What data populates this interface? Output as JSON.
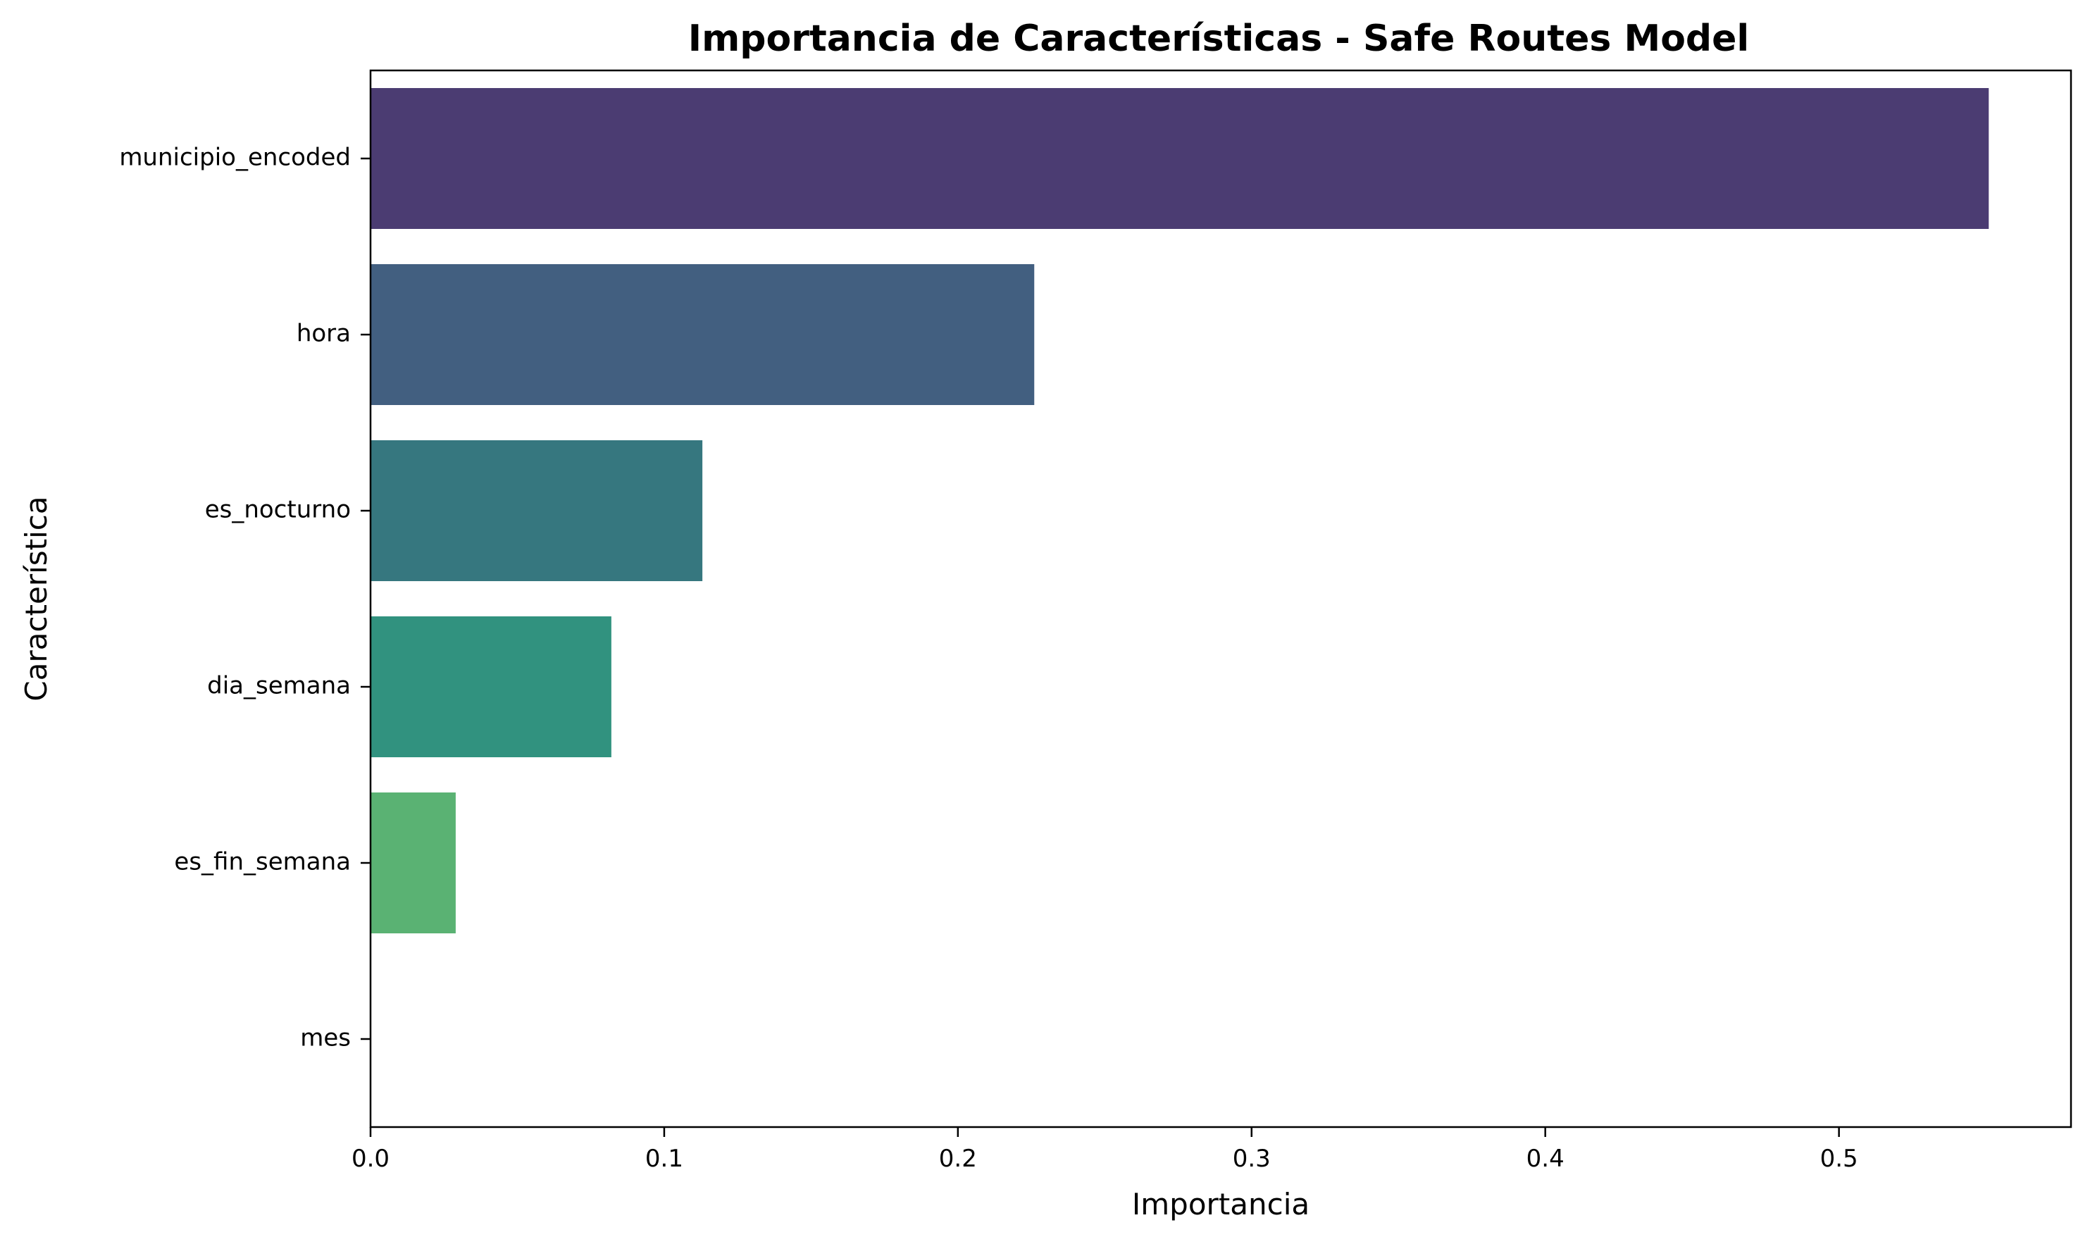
{
  "chart_data": {
    "type": "bar",
    "orientation": "horizontal",
    "title": "Importancia de Características - Safe Routes Model",
    "xlabel": "Importancia",
    "ylabel": "Característica",
    "categories": [
      "municipio_encoded",
      "hora",
      "es_nocturno",
      "dia_semana",
      "es_fin_semana",
      "mes"
    ],
    "values": [
      0.551,
      0.226,
      0.113,
      0.082,
      0.029,
      0.0
    ],
    "colors": [
      "#4b3c72",
      "#425f80",
      "#36777f",
      "#31927f",
      "#5ab273",
      "#a0d65a"
    ],
    "xlim": [
      0,
      0.579
    ],
    "xticks": [
      0.0,
      0.1,
      0.2,
      0.3,
      0.4,
      0.5
    ],
    "xtick_labels": [
      "0.0",
      "0.1",
      "0.2",
      "0.3",
      "0.4",
      "0.5"
    ],
    "grid": false,
    "legend": false
  }
}
